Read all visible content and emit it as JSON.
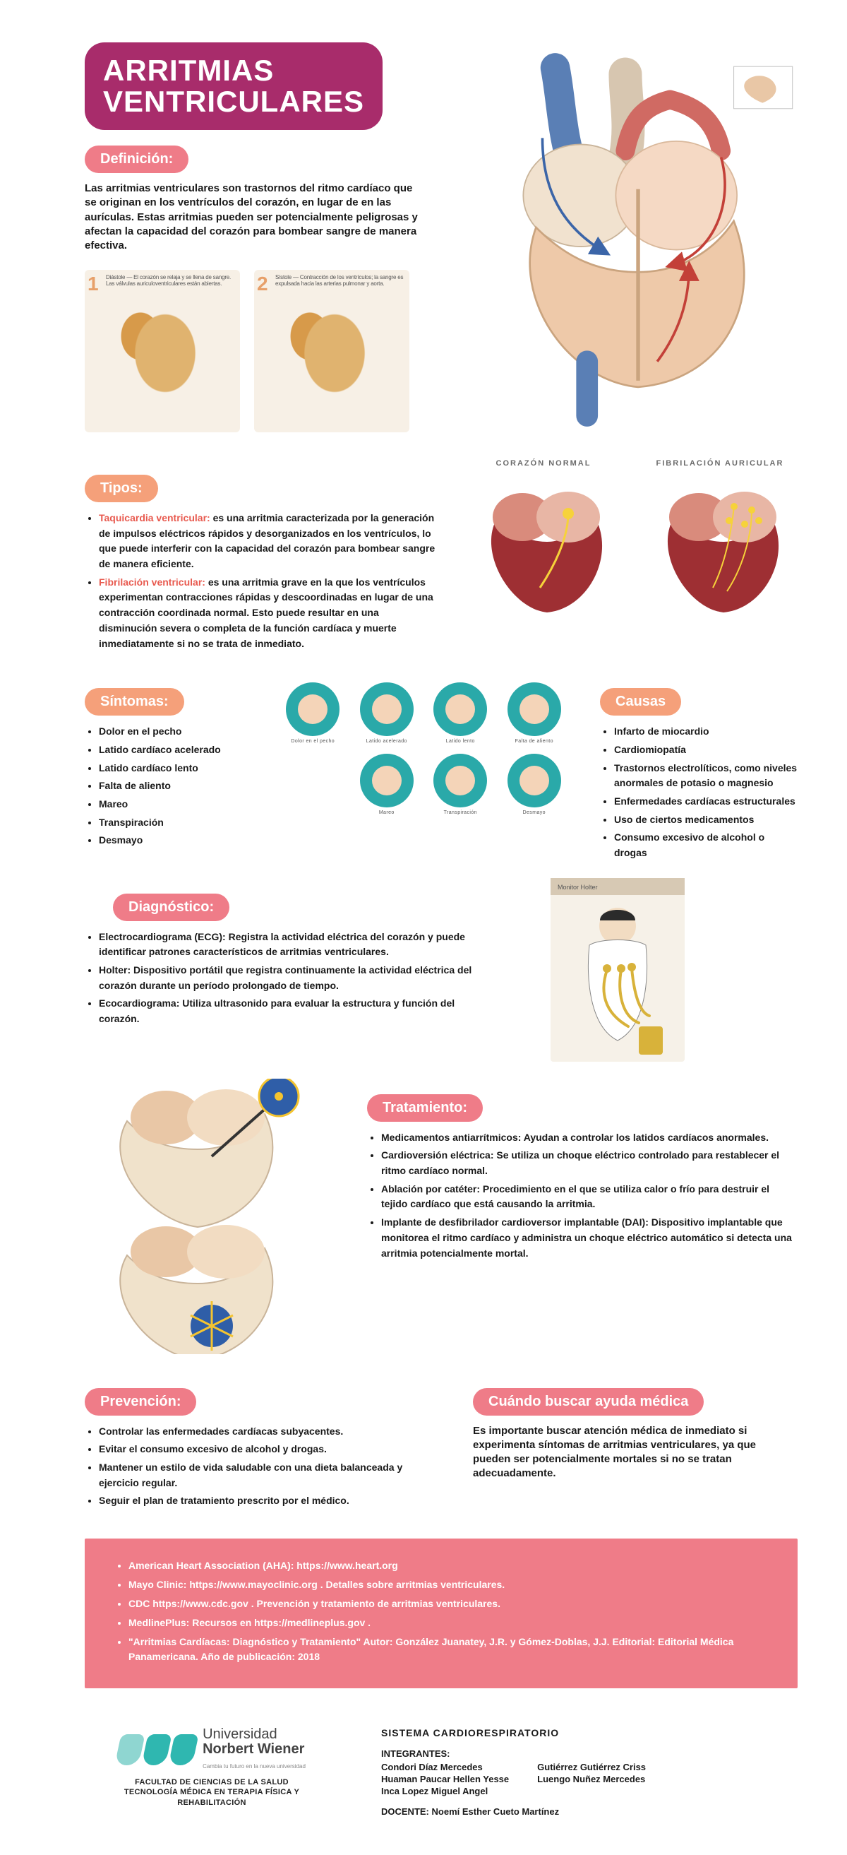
{
  "colors": {
    "title_bg": "#a82c6b",
    "badge_pink": "#ef7c88",
    "badge_orange": "#f5a07a",
    "accent_red": "#e85a4f",
    "teal": "#2aa9a9",
    "logo_teal": "#2fb7b0",
    "page_bg": "#ffffff"
  },
  "title_line1": "ARRITMIAS",
  "title_line2": "VENTRICULARES",
  "sections": {
    "definicion": {
      "label": "Definición:",
      "text": "Las arritmias ventriculares son trastornos del ritmo cardíaco que se originan en los ventrículos del corazón, en lugar de en las aurículas. Estas arritmias pueden ser potencialmente peligrosas y afectan la capacidad del corazón para bombear sangre de manera efectiva."
    },
    "tipos": {
      "label": "Tipos:",
      "items": [
        {
          "term": "Taquicardia ventricular:",
          "text": "es una arritmia caracterizada por la generación de impulsos eléctricos rápidos y desorganizados en los ventrículos, lo que puede interferir con la capacidad del corazón para bombear sangre de manera eficiente."
        },
        {
          "term": "Fibrilación ventricular:",
          "text": "es una arritmia grave en la que los ventrículos experimentan contracciones rápidas y descoordinadas en lugar de una contracción coordinada normal. Esto puede resultar en una disminución severa o completa de la función cardíaca y muerte inmediatamente si no se trata de inmediato."
        }
      ]
    },
    "compare_labels": {
      "left": "CORAZÓN NORMAL",
      "right": "FIBRILACIÓN AURICULAR"
    },
    "sintomas": {
      "label": "Síntomas:",
      "items": [
        "Dolor en el pecho",
        "Latido cardíaco acelerado",
        "Latido cardíaco lento",
        "Falta de aliento",
        "Mareo",
        "Transpiración",
        "Desmayo"
      ]
    },
    "causas": {
      "label": "Causas",
      "items": [
        "Infarto de miocardio",
        "Cardiomiopatía",
        "Trastornos electrolíticos, como niveles anormales de potasio o magnesio",
        "Enfermedades cardíacas estructurales",
        "Uso de ciertos medicamentos",
        "Consumo excesivo de alcohol o drogas"
      ]
    },
    "diagnostico": {
      "label": "Diagnóstico:",
      "items": [
        "Electrocardiograma (ECG): Registra la actividad eléctrica del corazón y puede identificar patrones característicos de arritmias ventriculares.",
        "Holter: Dispositivo portátil que registra continuamente la actividad eléctrica del corazón durante un período prolongado de tiempo.",
        "Ecocardiograma: Utiliza ultrasonido para evaluar la estructura y función del corazón."
      ]
    },
    "tratamiento": {
      "label": "Tratamiento:",
      "items": [
        "Medicamentos antiarrítmicos: Ayudan a controlar los latidos cardíacos anormales.",
        "Cardioversión eléctrica: Se utiliza un choque eléctrico controlado para restablecer el ritmo cardíaco normal.",
        "Ablación por catéter: Procedimiento en el que se utiliza calor o frío para destruir el tejido cardíaco que está causando la arritmia.",
        "Implante de desfibrilador cardioversor implantable (DAI): Dispositivo implantable que monitorea el ritmo cardíaco y administra un choque eléctrico automático si detecta una arritmia potencialmente mortal."
      ]
    },
    "prevencion": {
      "label": "Prevención:",
      "items": [
        "Controlar las enfermedades cardíacas subyacentes.",
        "Evitar el consumo excesivo de alcohol y drogas.",
        "Mantener un estilo de vida saludable con una dieta balanceada y ejercicio regular.",
        "Seguir el plan de tratamiento prescrito por el médico."
      ]
    },
    "ayuda": {
      "label": "Cuándo buscar ayuda médica",
      "text": "Es importante buscar atención médica de inmediato si experimenta síntomas de arritmias ventriculares, ya que pueden ser potencialmente mortales si no se tratan adecuadamente."
    }
  },
  "icon_captions": [
    "Dolor en el pecho",
    "Latido acelerado",
    "Latido lento",
    "Falta de aliento",
    "Mareo",
    "Transpiración",
    "Desmayo"
  ],
  "references": [
    "American Heart Association (AHA): https://www.heart.org",
    "Mayo Clinic: https://www.mayoclinic.org . Detalles sobre arritmias ventriculares.",
    "CDC https://www.cdc.gov . Prevención y tratamiento de arritmias ventriculares.",
    "MedlinePlus: Recursos en https://medlineplus.gov .",
    "\"Arritmias Cardíacas: Diagnóstico y Tratamiento\" Autor: González Juanatey, J.R. y Gómez-Doblas, J.J. Editorial: Editorial Médica Panamericana. Año de publicación: 2018"
  ],
  "footer": {
    "uni_line1": "Universidad",
    "uni_line2": "Norbert Wiener",
    "uni_tag": "Cambia tu futuro en la nueva universidad",
    "faculty": "FACULTAD DE CIENCIAS DE LA SALUD\nTECNOLOGÍA MÉDICA EN TERAPIA FÍSICA Y\nREHABILITACIÓN",
    "course": "SISTEMA CARDIORESPIRATORIO",
    "integrantes_label": "INTEGRANTES:",
    "integrantes": [
      "Condori Díaz Mercedes",
      "Gutiérrez Gutiérrez Criss",
      "Huaman Paucar Hellen Yesse",
      "Luengo Nuñez Mercedes",
      "Inca Lopez Miguel Angel",
      ""
    ],
    "docente_label": "DOCENTE:",
    "docente": "Noemí Esther Cueto Martínez"
  }
}
